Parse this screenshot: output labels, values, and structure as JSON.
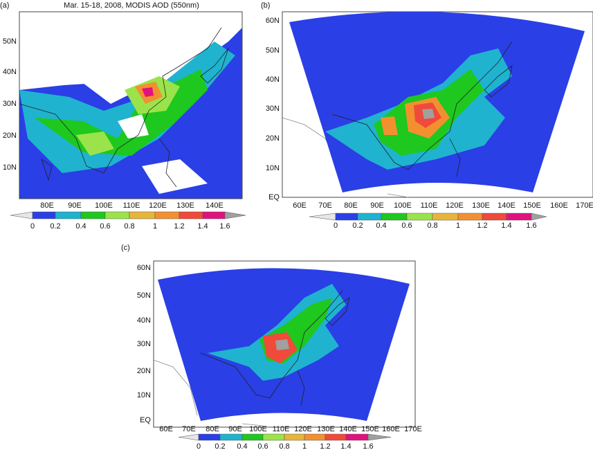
{
  "panels": [
    {
      "label": "(a)",
      "title": "Mar. 15-18, 2008, MODIS AOD (550nm)",
      "lat_labels": [
        "50N",
        "40N",
        "30N",
        "20N",
        "10N"
      ],
      "lon_labels": [
        "80E",
        "90E",
        "100E",
        "110E",
        "120E",
        "130E",
        "140E"
      ],
      "colorbar_labels": [
        "0",
        "0.2",
        "0.4",
        "0.6",
        "0.8",
        "1",
        "1.2",
        "1.4",
        "1.6"
      ]
    },
    {
      "label": "(b)",
      "lat_labels": [
        "60N",
        "50N",
        "40N",
        "30N",
        "20N",
        "10N",
        "EQ"
      ],
      "lon_labels": [
        "60E",
        "70E",
        "80E",
        "90E",
        "100E",
        "110E",
        "120E",
        "130E",
        "140E",
        "150E",
        "160E",
        "170E"
      ],
      "colorbar_labels": [
        "0",
        "0.2",
        "0.4",
        "0.6",
        "0.8",
        "1",
        "1.2",
        "1.4",
        "1.6"
      ]
    },
    {
      "label": "(c)",
      "lat_labels": [
        "60N",
        "50N",
        "40N",
        "30N",
        "20N",
        "10N",
        "EQ"
      ],
      "lon_labels": [
        "60E",
        "70E",
        "80E",
        "90E",
        "100E",
        "110E",
        "120E",
        "130E",
        "140E",
        "150E",
        "160E",
        "170E"
      ],
      "colorbar_labels": [
        "0",
        "0.2",
        "0.4",
        "0.6",
        "0.8",
        "1",
        "1.2",
        "1.4",
        "1.6"
      ]
    }
  ],
  "colorbar_colors": [
    "#e6e6e6",
    "#2a3fe6",
    "#1fb3cf",
    "#1ec81e",
    "#9be34a",
    "#e8b53a",
    "#f29030",
    "#f04a3a",
    "#e0127f",
    "#a0a0a0"
  ]
}
